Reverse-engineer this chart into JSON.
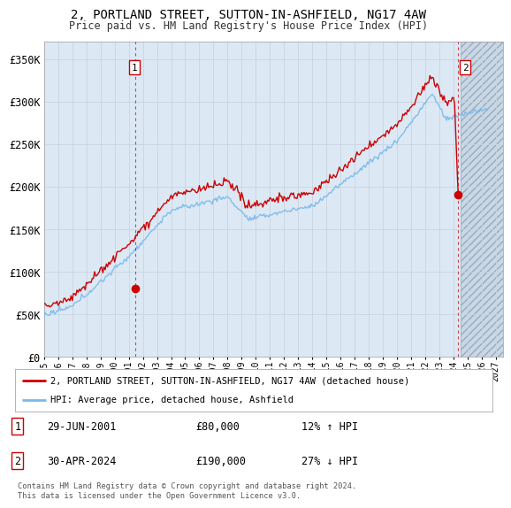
{
  "title": "2, PORTLAND STREET, SUTTON-IN-ASHFIELD, NG17 4AW",
  "subtitle": "Price paid vs. HM Land Registry's House Price Index (HPI)",
  "ylabel_ticks": [
    "£0",
    "£50K",
    "£100K",
    "£150K",
    "£200K",
    "£250K",
    "£300K",
    "£350K"
  ],
  "ytick_values": [
    0,
    50000,
    100000,
    150000,
    200000,
    250000,
    300000,
    350000
  ],
  "ylim": [
    0,
    370000
  ],
  "xlim_start": 1995.0,
  "xlim_end": 2027.5,
  "transaction1_date": 2001.49,
  "transaction1_price": 80000,
  "transaction1_label": "1",
  "transaction1_text": "29-JUN-2001",
  "transaction1_amount": "£80,000",
  "transaction1_hpi_pct": "12% ↑ HPI",
  "transaction2_date": 2024.33,
  "transaction2_price": 190000,
  "transaction2_label": "2",
  "transaction2_text": "30-APR-2024",
  "transaction2_amount": "£190,000",
  "transaction2_hpi_pct": "27% ↓ HPI",
  "legend_entry1": "2, PORTLAND STREET, SUTTON-IN-ASHFIELD, NG17 4AW (detached house)",
  "legend_entry2": "HPI: Average price, detached house, Ashfield",
  "footnote": "Contains HM Land Registry data © Crown copyright and database right 2024.\nThis data is licensed under the Open Government Licence v3.0.",
  "hpi_line_color": "#7ab8e8",
  "price_line_color": "#cc0000",
  "bg_color": "#dce9f5",
  "hatch_bg_color": "#d0dde8",
  "grid_color": "#c8d4e0",
  "dashed_line_color": "#cc0000",
  "figure_bg": "#ffffff",
  "title_fontsize": 10,
  "subtitle_fontsize": 8.5
}
